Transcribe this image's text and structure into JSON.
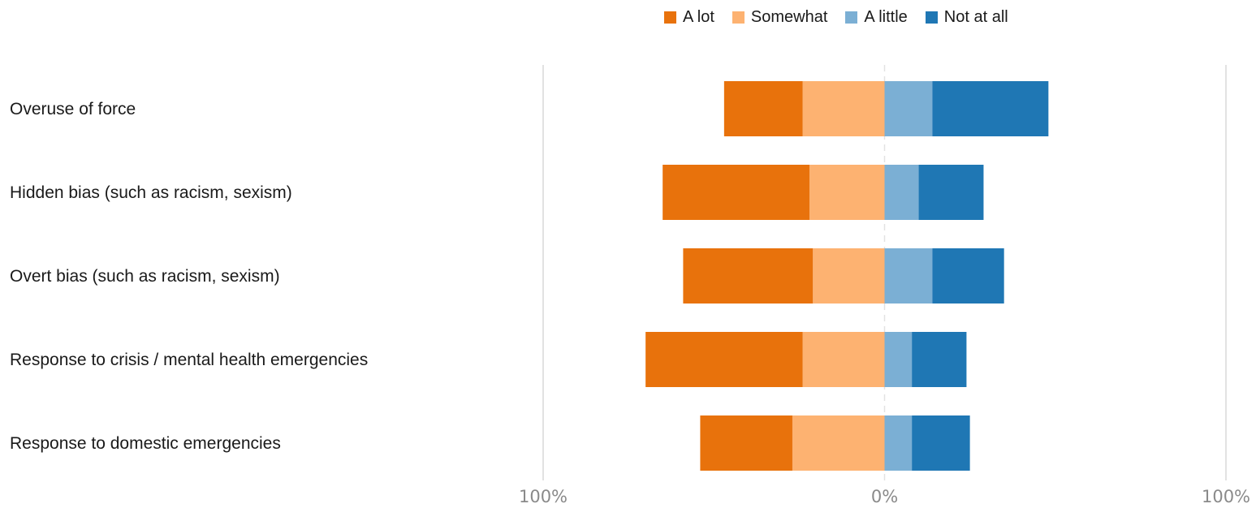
{
  "chart_data": {
    "type": "bar",
    "orientation": "horizontal",
    "stacking": "diverging",
    "categories": [
      "Overuse of force",
      "Hidden bias (such as racism, sexism)",
      "Overt bias (such as racism, sexism)",
      "Response to crisis / mental health emergencies",
      "Response to domestic emergencies"
    ],
    "series": [
      {
        "name": "A lot",
        "side": "left",
        "color": "#e8720c",
        "values": [
          23,
          43,
          38,
          46,
          27
        ]
      },
      {
        "name": "Somewhat",
        "side": "left",
        "color": "#fdb271",
        "values": [
          24,
          22,
          21,
          24,
          27
        ]
      },
      {
        "name": "A little",
        "side": "right",
        "color": "#7bafd4",
        "values": [
          14,
          10,
          14,
          8,
          8
        ]
      },
      {
        "name": "Not at all",
        "side": "right",
        "color": "#1f77b4",
        "values": [
          34,
          19,
          21,
          16,
          17
        ]
      }
    ],
    "xlim": [
      -100,
      100
    ],
    "ticks": [
      {
        "value": -100,
        "label": "100%"
      },
      {
        "value": 0,
        "label": "0%"
      },
      {
        "value": 100,
        "label": "100%"
      }
    ],
    "legend_position": "top-right",
    "grid": "boundary lines and dashed center line"
  }
}
